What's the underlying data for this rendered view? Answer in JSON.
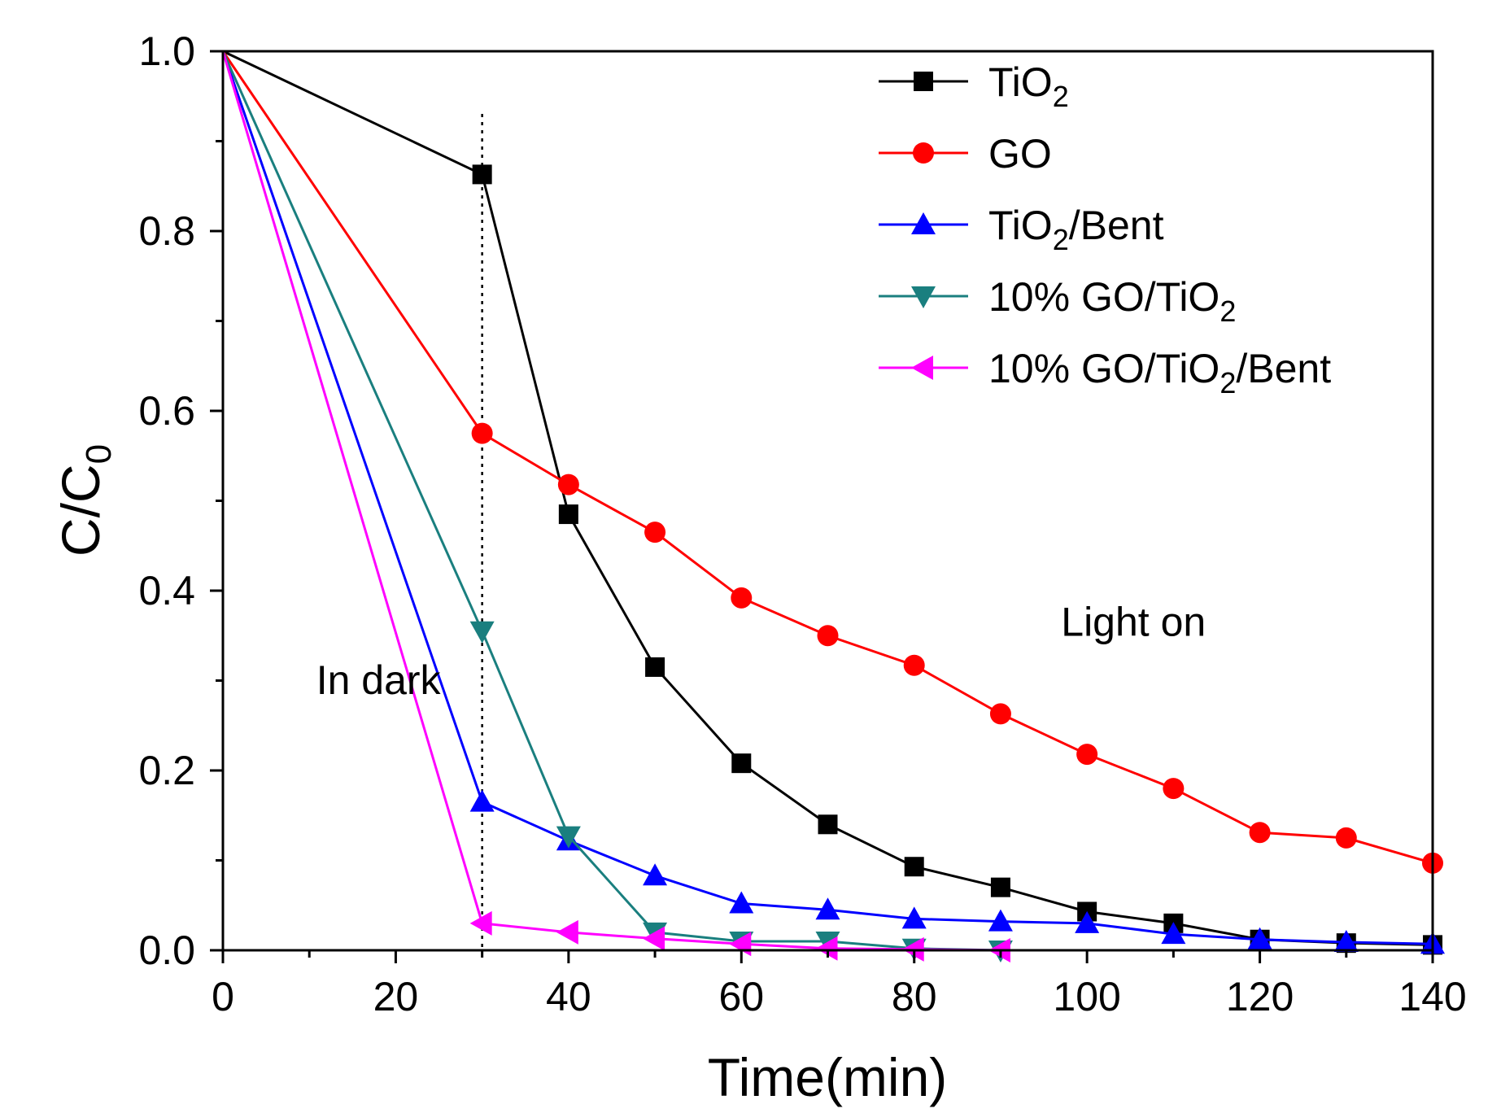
{
  "chart_data": {
    "type": "line",
    "title": "",
    "xlabel": "Time(min)",
    "ylabel": {
      "main": "C/C",
      "sub": "0"
    },
    "xlim": [
      0,
      140
    ],
    "ylim": [
      0,
      1.0
    ],
    "x_ticks": [
      0,
      20,
      40,
      60,
      80,
      100,
      120,
      140
    ],
    "x_tick_labels": [
      "0",
      "20",
      "40",
      "60",
      "80",
      "100",
      "120",
      "140"
    ],
    "y_ticks": [
      0.0,
      0.2,
      0.4,
      0.6,
      0.8,
      1.0
    ],
    "y_tick_labels": [
      "0.0",
      "0.2",
      "0.4",
      "0.6",
      "0.8",
      "1.0"
    ],
    "grid": false,
    "legend_position": "top-right",
    "annotations": [
      {
        "text": "In dark",
        "x": 10.8,
        "y": 0.285
      },
      {
        "text": "Light on",
        "x": 97,
        "y": 0.35
      }
    ],
    "reference_line": {
      "type": "vertical",
      "style": "dotted",
      "x": 30
    },
    "series": [
      {
        "name": "TiO2",
        "legend_parts": [
          {
            "t": "TiO"
          },
          {
            "t": "2",
            "sub": true
          }
        ],
        "color": "#000000",
        "marker": "square",
        "x": [
          0,
          30,
          40,
          50,
          60,
          70,
          80,
          90,
          100,
          110,
          120,
          130,
          140
        ],
        "y": [
          1.0,
          0.863,
          0.485,
          0.315,
          0.208,
          0.14,
          0.093,
          0.07,
          0.043,
          0.03,
          0.012,
          0.008,
          0.006
        ]
      },
      {
        "name": "GO",
        "legend_parts": [
          {
            "t": "GO"
          }
        ],
        "color": "#ff0000",
        "marker": "circle",
        "x": [
          0,
          30,
          40,
          50,
          60,
          70,
          80,
          90,
          100,
          110,
          120,
          130,
          140
        ],
        "y": [
          1.0,
          0.575,
          0.518,
          0.465,
          0.392,
          0.35,
          0.317,
          0.263,
          0.218,
          0.18,
          0.131,
          0.125,
          0.097
        ]
      },
      {
        "name": "TiO2/Bent",
        "legend_parts": [
          {
            "t": "TiO"
          },
          {
            "t": "2",
            "sub": true
          },
          {
            "t": "/Bent"
          }
        ],
        "color": "#0000ff",
        "marker": "triangle-up",
        "x": [
          0,
          30,
          40,
          50,
          60,
          70,
          80,
          90,
          100,
          110,
          120,
          130,
          140
        ],
        "y": [
          1.0,
          0.165,
          0.122,
          0.083,
          0.052,
          0.045,
          0.035,
          0.032,
          0.03,
          0.018,
          0.012,
          0.009,
          0.007
        ]
      },
      {
        "name": "10% GO/TiO2",
        "legend_parts": [
          {
            "t": "10% GO/TiO"
          },
          {
            "t": "2",
            "sub": true
          }
        ],
        "color": "#1a7f7f",
        "marker": "triangle-down",
        "x": [
          0,
          30,
          40,
          50,
          60,
          70,
          80,
          90
        ],
        "y": [
          1.0,
          0.355,
          0.127,
          0.02,
          0.01,
          0.01,
          0.002,
          0.0
        ]
      },
      {
        "name": "10% GO/TiO2/Bent",
        "legend_parts": [
          {
            "t": "10% GO/TiO"
          },
          {
            "t": "2",
            "sub": true
          },
          {
            "t": "/Bent"
          }
        ],
        "color": "#ff00ff",
        "marker": "triangle-left",
        "x": [
          0,
          30,
          40,
          50,
          60,
          70,
          80,
          90
        ],
        "y": [
          1.0,
          0.03,
          0.02,
          0.013,
          0.007,
          0.002,
          0.001,
          0.0
        ]
      }
    ]
  }
}
